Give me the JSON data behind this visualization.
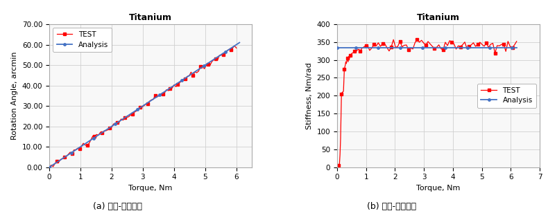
{
  "chart1": {
    "title": "Titanium",
    "xlabel": "Torque, Nm",
    "ylabel": "Rotation Angle, arcmin",
    "xlim": [
      0,
      6.5
    ],
    "ylim": [
      0,
      70
    ],
    "ytick_vals": [
      0.0,
      10.0,
      20.0,
      30.0,
      40.0,
      50.0,
      60.0,
      70.0
    ],
    "ytick_labels": [
      "0.00",
      "10.00",
      "20.00",
      "30.00",
      "40.00",
      "50.00",
      "60.00",
      "70.00"
    ],
    "xticks": [
      0,
      1,
      2,
      3,
      4,
      5,
      6
    ],
    "analysis_color": "#4472C4",
    "test_color": "#FF0000",
    "caption": "(a) 토크-변형변위",
    "legend_loc": "upper left"
  },
  "chart2": {
    "title": "Titanium",
    "xlabel": "Torque, Nm",
    "ylabel": "Stiffness, Nm/rad",
    "xlim": [
      0,
      7
    ],
    "ylim": [
      0,
      400
    ],
    "yticks": [
      0,
      50,
      100,
      150,
      200,
      250,
      300,
      350,
      400
    ],
    "xticks": [
      0,
      1,
      2,
      3,
      4,
      5,
      6,
      7
    ],
    "analysis_color": "#4472C4",
    "test_color": "#FF0000",
    "caption": "(b) 토크-강성변화",
    "legend_loc": "center right"
  },
  "bg_color": "#FFFFFF",
  "plot_bg_color": "#F8F8F8",
  "grid_color": "#D0D0D0",
  "legend_analysis": "Analysis",
  "legend_test": "TEST"
}
